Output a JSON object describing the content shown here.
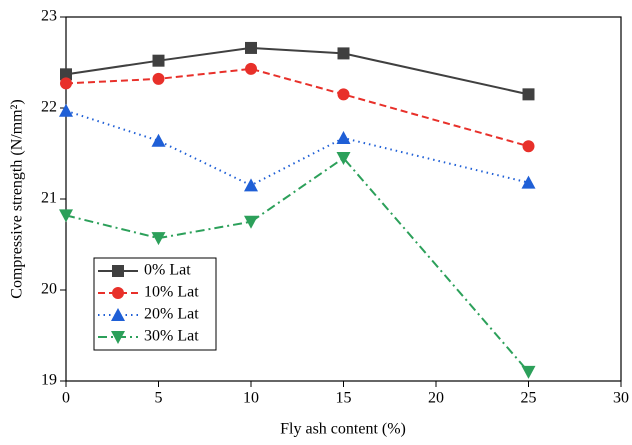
{
  "chart_data": {
    "type": "line",
    "xlabel": "Fly ash content (%)",
    "ylabel": "Compressive strength (N/mm²)",
    "x": [
      0,
      5,
      10,
      15,
      25
    ],
    "xlim": [
      0,
      30
    ],
    "xticks": [
      0,
      5,
      10,
      15,
      20,
      25,
      30
    ],
    "ylim": [
      19,
      23
    ],
    "yticks": [
      19,
      20,
      21,
      22,
      23
    ],
    "legend": "lower-left",
    "series": [
      {
        "name": "0% Lat",
        "color": "#404040",
        "marker": "square",
        "linestyle": "solid",
        "values": [
          22.37,
          22.52,
          22.66,
          22.6,
          22.15
        ]
      },
      {
        "name": "10% Lat",
        "color": "#e8302a",
        "marker": "circle",
        "linestyle": "dashed",
        "values": [
          22.27,
          22.32,
          22.43,
          22.15,
          21.58
        ]
      },
      {
        "name": "20% Lat",
        "color": "#1f5fd6",
        "marker": "triangle-up",
        "linestyle": "dotted",
        "values": [
          21.97,
          21.64,
          21.15,
          21.67,
          21.18
        ]
      },
      {
        "name": "30% Lat",
        "color": "#2ca05a",
        "marker": "triangle-down",
        "linestyle": "dashdot",
        "values": [
          20.82,
          20.57,
          20.75,
          21.45,
          19.1
        ]
      }
    ]
  }
}
